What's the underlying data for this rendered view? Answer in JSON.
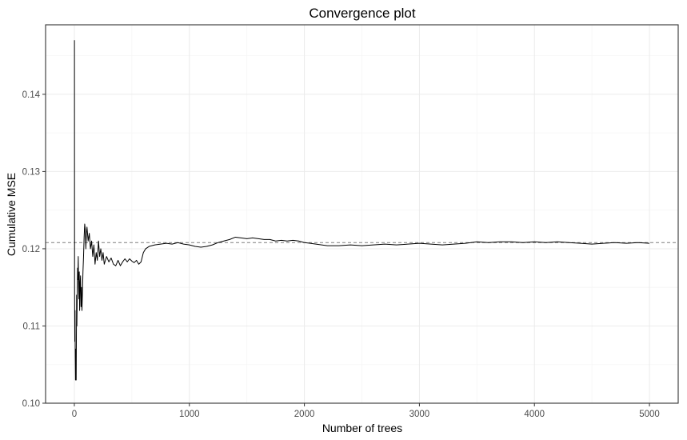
{
  "chart_data": {
    "type": "line",
    "title": "Convergence plot",
    "xlabel": "Number of trees",
    "ylabel": "Cumulative MSE",
    "xlim": [
      -250,
      5250
    ],
    "ylim": [
      0.1,
      0.149
    ],
    "x_ticks": [
      0,
      1000,
      2000,
      3000,
      4000,
      5000
    ],
    "x_tick_labels": [
      "0",
      "1000",
      "2000",
      "3000",
      "4000",
      "5000"
    ],
    "y_ticks": [
      0.1,
      0.11,
      0.12,
      0.13,
      0.14
    ],
    "y_tick_labels": [
      "0.10",
      "0.11",
      "0.12",
      "0.13",
      "0.14"
    ],
    "grid": true,
    "reference_line": {
      "y": 0.1208,
      "style": "dashed",
      "color": "#7f7f7f"
    },
    "series": [
      {
        "color": "#000000",
        "points": [
          [
            1,
            0.147
          ],
          [
            2,
            0.115
          ],
          [
            4,
            0.108
          ],
          [
            6,
            0.112
          ],
          [
            8,
            0.106
          ],
          [
            10,
            0.103
          ],
          [
            12,
            0.107
          ],
          [
            14,
            0.104
          ],
          [
            16,
            0.103
          ],
          [
            18,
            0.109
          ],
          [
            20,
            0.114
          ],
          [
            22,
            0.11
          ],
          [
            25,
            0.114
          ],
          [
            28,
            0.1175
          ],
          [
            31,
            0.116
          ],
          [
            34,
            0.119
          ],
          [
            37,
            0.115
          ],
          [
            40,
            0.1135
          ],
          [
            43,
            0.117
          ],
          [
            46,
            0.112
          ],
          [
            50,
            0.1155
          ],
          [
            54,
            0.1165
          ],
          [
            58,
            0.1125
          ],
          [
            62,
            0.115
          ],
          [
            66,
            0.112
          ],
          [
            70,
            0.114
          ],
          [
            75,
            0.117
          ],
          [
            80,
            0.119
          ],
          [
            85,
            0.1215
          ],
          [
            90,
            0.1232
          ],
          [
            95,
            0.1225
          ],
          [
            100,
            0.12
          ],
          [
            105,
            0.122
          ],
          [
            110,
            0.1228
          ],
          [
            120,
            0.121
          ],
          [
            130,
            0.122
          ],
          [
            140,
            0.12
          ],
          [
            150,
            0.121
          ],
          [
            160,
            0.119
          ],
          [
            170,
            0.1205
          ],
          [
            180,
            0.118
          ],
          [
            190,
            0.1195
          ],
          [
            200,
            0.1185
          ],
          [
            210,
            0.121
          ],
          [
            220,
            0.119
          ],
          [
            230,
            0.12
          ],
          [
            240,
            0.1185
          ],
          [
            250,
            0.1195
          ],
          [
            260,
            0.118
          ],
          [
            280,
            0.119
          ],
          [
            300,
            0.1183
          ],
          [
            320,
            0.1188
          ],
          [
            340,
            0.118
          ],
          [
            360,
            0.1178
          ],
          [
            380,
            0.1185
          ],
          [
            400,
            0.1178
          ],
          [
            420,
            0.1183
          ],
          [
            440,
            0.1187
          ],
          [
            460,
            0.1183
          ],
          [
            480,
            0.1187
          ],
          [
            500,
            0.1184
          ],
          [
            520,
            0.1182
          ],
          [
            540,
            0.1185
          ],
          [
            560,
            0.118
          ],
          [
            580,
            0.1183
          ],
          [
            600,
            0.1195
          ],
          [
            620,
            0.12
          ],
          [
            650,
            0.1203
          ],
          [
            700,
            0.1205
          ],
          [
            750,
            0.1206
          ],
          [
            800,
            0.1207
          ],
          [
            850,
            0.1206
          ],
          [
            900,
            0.1208
          ],
          [
            950,
            0.1206
          ],
          [
            1000,
            0.1205
          ],
          [
            1050,
            0.1203
          ],
          [
            1100,
            0.1202
          ],
          [
            1150,
            0.1203
          ],
          [
            1200,
            0.1205
          ],
          [
            1250,
            0.1208
          ],
          [
            1300,
            0.121
          ],
          [
            1350,
            0.1212
          ],
          [
            1400,
            0.1215
          ],
          [
            1450,
            0.1214
          ],
          [
            1500,
            0.1213
          ],
          [
            1550,
            0.1214
          ],
          [
            1600,
            0.1213
          ],
          [
            1650,
            0.1212
          ],
          [
            1700,
            0.1212
          ],
          [
            1750,
            0.121
          ],
          [
            1800,
            0.1211
          ],
          [
            1850,
            0.121
          ],
          [
            1900,
            0.1211
          ],
          [
            1950,
            0.121
          ],
          [
            2000,
            0.1208
          ],
          [
            2050,
            0.1207
          ],
          [
            2100,
            0.1206
          ],
          [
            2150,
            0.1205
          ],
          [
            2200,
            0.1204
          ],
          [
            2300,
            0.1204
          ],
          [
            2400,
            0.1205
          ],
          [
            2500,
            0.1204
          ],
          [
            2600,
            0.1205
          ],
          [
            2700,
            0.1206
          ],
          [
            2800,
            0.1205
          ],
          [
            2900,
            0.1206
          ],
          [
            3000,
            0.1207
          ],
          [
            3100,
            0.1206
          ],
          [
            3200,
            0.1205
          ],
          [
            3300,
            0.1206
          ],
          [
            3400,
            0.1207
          ],
          [
            3500,
            0.1209
          ],
          [
            3600,
            0.1208
          ],
          [
            3700,
            0.1209
          ],
          [
            3800,
            0.1209
          ],
          [
            3900,
            0.1208
          ],
          [
            4000,
            0.1209
          ],
          [
            4100,
            0.1208
          ],
          [
            4200,
            0.1209
          ],
          [
            4300,
            0.1208
          ],
          [
            4400,
            0.1207
          ],
          [
            4500,
            0.1206
          ],
          [
            4600,
            0.1207
          ],
          [
            4700,
            0.1208
          ],
          [
            4800,
            0.1207
          ],
          [
            4900,
            0.1208
          ],
          [
            5000,
            0.1207
          ]
        ]
      }
    ]
  }
}
